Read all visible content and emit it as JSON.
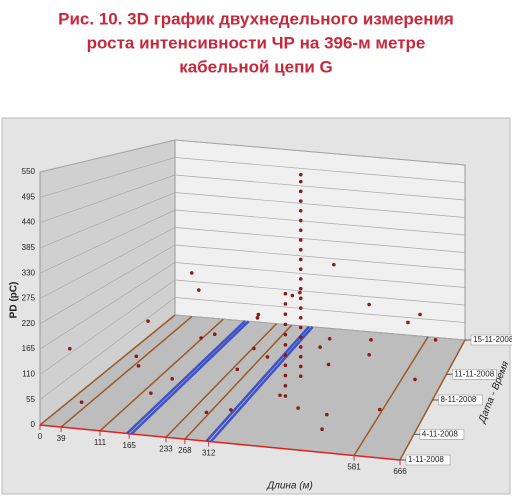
{
  "chart_data": {
    "type": "scatter3d",
    "title": [
      "Рис. 10. 3D график двухнедельного измерения",
      "роста интенсивности ЧР на 396-м метре",
      "кабельной цепи G"
    ],
    "y_label": "PD (pC)",
    "x_label": "Длина (м)",
    "z_label": "Дата - Время",
    "xlim": [
      0,
      666
    ],
    "xticks": [
      0,
      39,
      111,
      165,
      233,
      268,
      312,
      581,
      666
    ],
    "x_highlight": [
      165,
      312
    ],
    "x_line_color": "#9a5a2a",
    "x_highlight_color": "#3f52c8",
    "ylim": [
      0,
      550
    ],
    "yticks": [
      0,
      55,
      110,
      165,
      220,
      275,
      330,
      385,
      440,
      495,
      550
    ],
    "zlim": [
      1,
      15
    ],
    "zticks": [
      {
        "value": 1,
        "label": "1-11-2008"
      },
      {
        "value": 4,
        "label": "4-11-2008"
      },
      {
        "value": 8,
        "label": "8-11-2008"
      },
      {
        "value": 11,
        "label": "11-11-2008"
      },
      {
        "value": 15,
        "label": "15-11-2008"
      }
    ],
    "color": "#8b1a1a",
    "grid": true,
    "x": [
      396,
      396,
      396,
      396,
      396,
      396,
      396,
      396,
      396,
      396,
      396,
      396,
      396,
      396,
      396,
      396,
      396,
      396,
      396,
      396,
      396,
      396,
      392,
      392,
      392,
      392,
      392,
      392,
      392,
      392,
      392,
      392,
      392,
      20,
      45,
      60,
      80,
      100,
      130,
      150,
      170,
      190,
      210,
      240,
      260,
      280,
      300,
      320,
      340,
      350,
      370,
      410,
      420,
      440,
      460,
      480,
      500,
      520,
      540,
      560,
      600,
      620,
      640,
      430,
      380,
      250,
      150,
      500,
      610
    ],
    "z": [
      8,
      8,
      8,
      8,
      8,
      8,
      8,
      8,
      8,
      8,
      8,
      8,
      8,
      8,
      8,
      8,
      8,
      8,
      8,
      8,
      8,
      8,
      6,
      6,
      6,
      6,
      6,
      6,
      6,
      6,
      6,
      6,
      6,
      3,
      10,
      2,
      13,
      6,
      4,
      12,
      9,
      2,
      14,
      5,
      11,
      3,
      8,
      13,
      2,
      10,
      5,
      12,
      3,
      9,
      14,
      6,
      11,
      2,
      8,
      13,
      4,
      10,
      7,
      5,
      12,
      9,
      7,
      3,
      14
    ],
    "values": [
      30,
      55,
      80,
      105,
      130,
      155,
      180,
      205,
      230,
      255,
      280,
      305,
      330,
      355,
      380,
      405,
      430,
      455,
      480,
      505,
      530,
      548,
      20,
      45,
      70,
      95,
      120,
      145,
      170,
      195,
      220,
      245,
      270,
      140,
      95,
      40,
      180,
      60,
      120,
      30,
      210,
      75,
      50,
      160,
      110,
      25,
      90,
      150,
      55,
      200,
      130,
      260,
      80,
      45,
      110,
      170,
      35,
      65,
      140,
      90,
      50,
      180,
      70,
      15,
      20,
      10,
      15,
      12,
      20
    ]
  }
}
